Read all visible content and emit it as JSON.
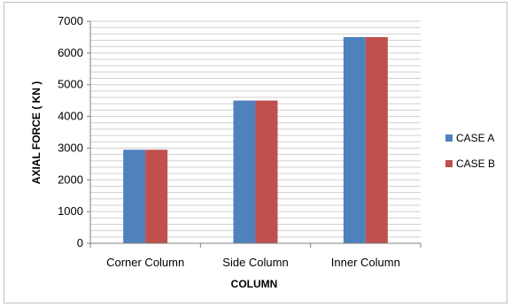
{
  "chart_data": {
    "type": "bar",
    "categories": [
      "Corner Column",
      "Side Column",
      "Inner Column"
    ],
    "series": [
      {
        "name": "CASE A",
        "values": [
          2950,
          4500,
          6500
        ],
        "color": "#4f81bd"
      },
      {
        "name": "CASE B",
        "values": [
          2950,
          4500,
          6500
        ],
        "color": "#c0504d"
      }
    ],
    "title": "",
    "xlabel": "COLUMN",
    "ylabel": "AXIAL FORCE ( KN )",
    "ylim": [
      0,
      7000
    ],
    "yticks": [
      0,
      1000,
      2000,
      3000,
      4000,
      5000,
      6000,
      7000
    ],
    "minor_gridlines_per_major": 5,
    "grid": true,
    "legend_position": "right"
  }
}
